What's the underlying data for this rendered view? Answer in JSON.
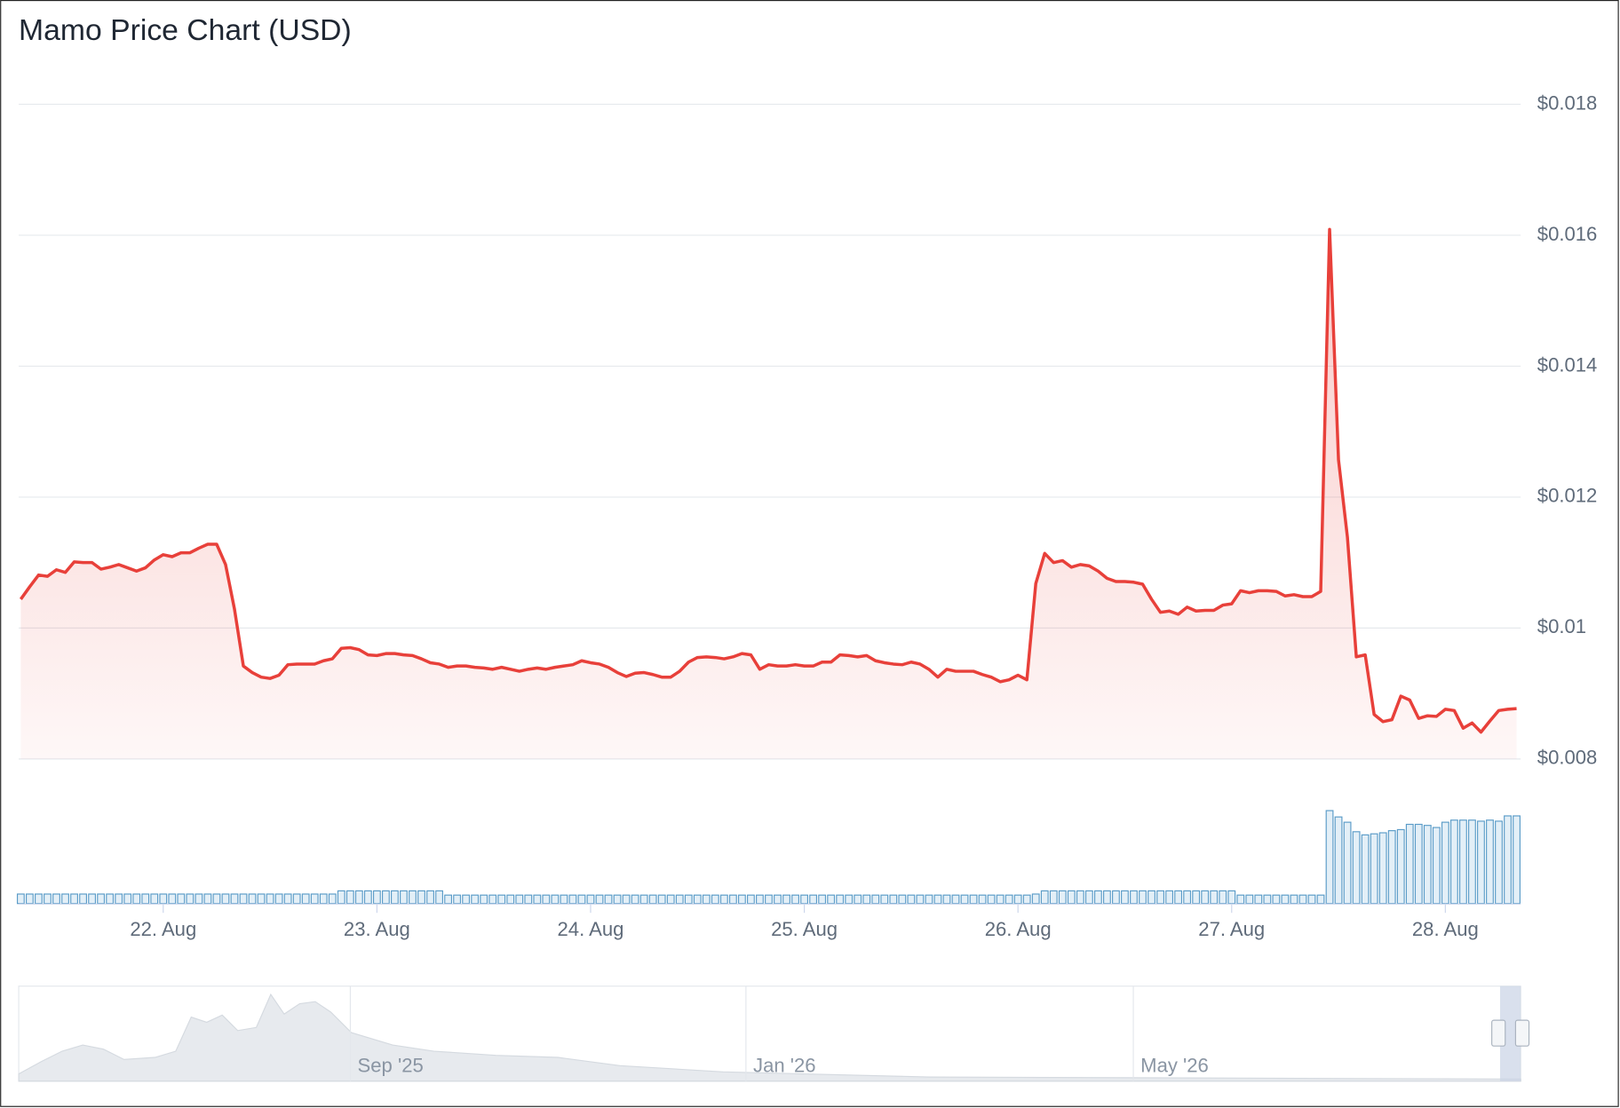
{
  "chart_data": {
    "type": "line",
    "title": "Mamo Price Chart (USD)",
    "categories": [
      null,
      null,
      null,
      null,
      null,
      null,
      null,
      null,
      null,
      null,
      null,
      null,
      null,
      null,
      null,
      null,
      "22. Aug",
      null,
      null,
      null,
      null,
      null,
      null,
      null,
      null,
      null,
      null,
      null,
      null,
      null,
      null,
      null,
      null,
      null,
      null,
      null,
      null,
      null,
      null,
      null,
      "23. Aug",
      null,
      null,
      null,
      null,
      null,
      null,
      null,
      null,
      null,
      null,
      null,
      null,
      null,
      null,
      null,
      null,
      null,
      null,
      null,
      null,
      null,
      null,
      null,
      "24. Aug",
      null,
      null,
      null,
      null,
      null,
      null,
      null,
      null,
      null,
      null,
      null,
      null,
      null,
      null,
      null,
      null,
      null,
      null,
      null,
      null,
      null,
      null,
      null,
      "25. Aug",
      null,
      null,
      null,
      null,
      null,
      null,
      null,
      null,
      null,
      null,
      null,
      null,
      null,
      null,
      null,
      null,
      null,
      null,
      null,
      null,
      null,
      null,
      null,
      "26. Aug",
      null,
      null,
      null,
      null,
      null,
      null,
      null,
      null,
      null,
      null,
      null,
      null,
      null,
      null,
      null,
      null,
      null,
      null,
      null,
      null,
      null,
      null,
      null,
      "27. Aug",
      null,
      null,
      null,
      null,
      null,
      null,
      null,
      null,
      null,
      null,
      null,
      null,
      null,
      null,
      null,
      null,
      null,
      null,
      null,
      null,
      null,
      null,
      null,
      "28. Aug",
      null,
      null,
      null,
      null,
      null,
      null,
      null,
      null
    ],
    "values": [
      0.01044,
      0.01063,
      0.01081,
      0.01079,
      0.01089,
      0.01085,
      0.01101,
      0.011,
      0.011,
      0.0109,
      0.01093,
      0.01097,
      0.01092,
      0.01087,
      0.01092,
      0.01104,
      0.01112,
      0.01109,
      0.01115,
      0.01115,
      0.01122,
      0.01128,
      0.01128,
      0.01097,
      0.01029,
      0.00942,
      0.00932,
      0.00925,
      0.00923,
      0.00928,
      0.00944,
      0.00945,
      0.00945,
      0.00945,
      0.0095,
      0.00953,
      0.00969,
      0.0097,
      0.00967,
      0.00959,
      0.00958,
      0.00961,
      0.00961,
      0.00959,
      0.00958,
      0.00953,
      0.00947,
      0.00945,
      0.0094,
      0.00942,
      0.00942,
      0.0094,
      0.00939,
      0.00937,
      0.0094,
      0.00937,
      0.00934,
      0.00937,
      0.00939,
      0.00937,
      0.0094,
      0.00942,
      0.00944,
      0.0095,
      0.00947,
      0.00945,
      0.0094,
      0.00932,
      0.00926,
      0.00931,
      0.00932,
      0.00929,
      0.00925,
      0.00925,
      0.00934,
      0.00948,
      0.00955,
      0.00956,
      0.00955,
      0.00953,
      0.00956,
      0.00961,
      0.00959,
      0.00937,
      0.00944,
      0.00942,
      0.00942,
      0.00944,
      0.00942,
      0.00942,
      0.00948,
      0.00948,
      0.00959,
      0.00958,
      0.00956,
      0.00958,
      0.0095,
      0.00947,
      0.00945,
      0.00944,
      0.00948,
      0.00945,
      0.00937,
      0.00925,
      0.00937,
      0.00934,
      0.00934,
      0.00934,
      0.00929,
      0.00925,
      0.00918,
      0.00921,
      0.00928,
      0.00921,
      0.01068,
      0.01114,
      0.011,
      0.01103,
      0.01093,
      0.01097,
      0.01095,
      0.01087,
      0.01076,
      0.01071,
      0.01071,
      0.0107,
      0.01067,
      0.01044,
      0.01024,
      0.01026,
      0.01021,
      0.01032,
      0.01026,
      0.01027,
      0.01027,
      0.01035,
      0.01037,
      0.01057,
      0.01054,
      0.01057,
      0.01057,
      0.01056,
      0.01049,
      0.01051,
      0.01048,
      0.01048,
      0.01056,
      0.01609,
      0.01257,
      0.01139,
      0.00956,
      0.00959,
      0.00868,
      0.00857,
      0.0086,
      0.00896,
      0.0089,
      0.00862,
      0.00866,
      0.00865,
      0.00876,
      0.00874,
      0.00847,
      0.00855,
      0.00841,
      0.00858,
      0.00874,
      0.00876,
      0.00877
    ],
    "volumes": [
      9,
      9,
      9,
      9,
      9,
      9,
      9,
      9,
      9,
      9,
      9,
      9,
      9,
      9,
      9,
      9,
      9,
      9,
      9,
      9,
      9,
      9,
      9,
      9,
      9,
      9,
      9,
      9,
      9,
      9,
      9,
      9,
      9,
      9,
      9,
      9,
      12,
      12,
      12,
      12,
      12,
      12,
      12,
      12,
      12,
      12,
      12,
      12,
      8,
      8,
      8,
      8,
      8,
      8,
      8,
      8,
      8,
      8,
      8,
      8,
      8,
      8,
      8,
      8,
      8,
      8,
      8,
      8,
      8,
      8,
      8,
      8,
      8,
      8,
      8,
      8,
      8,
      8,
      8,
      8,
      8,
      8,
      8,
      8,
      8,
      8,
      8,
      8,
      8,
      8,
      8,
      8,
      8,
      8,
      8,
      8,
      8,
      8,
      8,
      8,
      8,
      8,
      8,
      8,
      8,
      8,
      8,
      8,
      8,
      8,
      8,
      8,
      8,
      8,
      9,
      12,
      12,
      12,
      12,
      12,
      12,
      12,
      12,
      12,
      12,
      12,
      12,
      12,
      12,
      12,
      12,
      12,
      12,
      12,
      12,
      12,
      12,
      8,
      8,
      8,
      8,
      8,
      8,
      8,
      8,
      8,
      8,
      88,
      82,
      77,
      68,
      65,
      66,
      67,
      69,
      70,
      75,
      75,
      74,
      72,
      77,
      79,
      79,
      79,
      78,
      79,
      78,
      83,
      83
    ],
    "color": "#e8403a",
    "volume_color": "#5b9cc8",
    "ylim": [
      0.008,
      0.018
    ],
    "yticks": [
      {
        "value": 0.008,
        "label": "$0.008"
      },
      {
        "value": 0.01,
        "label": "$0.01"
      },
      {
        "value": 0.012,
        "label": "$0.012"
      },
      {
        "value": 0.014,
        "label": "$0.014"
      },
      {
        "value": 0.016,
        "label": "$0.016"
      },
      {
        "value": 0.018,
        "label": "$0.018"
      }
    ],
    "grid": true,
    "navigator": {
      "labels": [
        "Sep '25",
        "Jan '26",
        "May '26"
      ]
    }
  }
}
